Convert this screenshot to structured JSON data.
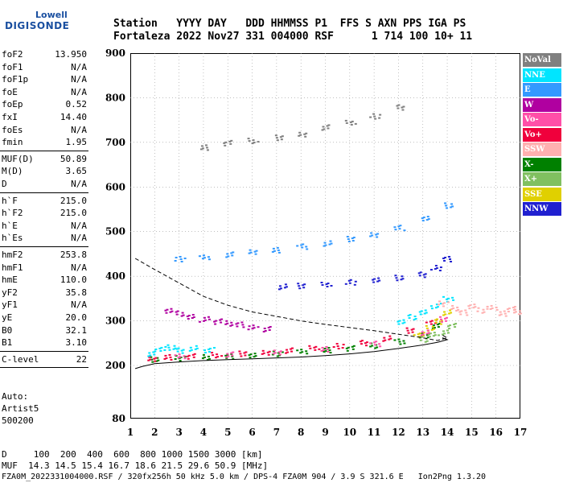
{
  "logo": {
    "line1": "Lowell",
    "line2": "DIGISONDE"
  },
  "header": {
    "line1": "Station   YYYY DAY   DDD HHMMSS P1  FFS S AXN PPS IGA PS",
    "line2": "Fortaleza 2022 Nov27 331 004000 RSF      1 714 100 10+ 11"
  },
  "params": {
    "group1": [
      {
        "label": "foF2",
        "value": "13.950"
      },
      {
        "label": "foF1",
        "value": "N/A"
      },
      {
        "label": "foF1p",
        "value": "N/A"
      },
      {
        "label": "foE",
        "value": "N/A"
      },
      {
        "label": "foEp",
        "value": "0.52"
      },
      {
        "label": "fxI",
        "value": "14.40"
      },
      {
        "label": "foEs",
        "value": "N/A"
      },
      {
        "label": "fmin",
        "value": "1.95"
      }
    ],
    "group2": [
      {
        "label": "MUF(D)",
        "value": "50.89"
      },
      {
        "label": "M(D)",
        "value": "3.65"
      },
      {
        "label": "D",
        "value": "N/A"
      }
    ],
    "group3": [
      {
        "label": "h`F",
        "value": "215.0"
      },
      {
        "label": "h`F2",
        "value": "215.0"
      },
      {
        "label": "h`E",
        "value": "N/A"
      },
      {
        "label": "h`Es",
        "value": "N/A"
      }
    ],
    "group4": [
      {
        "label": "hmF2",
        "value": "253.8"
      },
      {
        "label": "hmF1",
        "value": "N/A"
      },
      {
        "label": "hmE",
        "value": "110.0"
      },
      {
        "label": "yF2",
        "value": "35.8"
      },
      {
        "label": "yF1",
        "value": "N/A"
      },
      {
        "label": "yE",
        "value": "20.0"
      },
      {
        "label": "B0",
        "value": "32.1"
      },
      {
        "label": "B1",
        "value": "3.10"
      }
    ],
    "group5": [
      {
        "label": "C-level",
        "value": "22"
      }
    ]
  },
  "auto": {
    "line1": "Auto:",
    "line2": "Artist5",
    "line3": "500200"
  },
  "footer": {
    "distance_row": "D     100  200  400  600  800 1000 1500 3000 [km]",
    "muf_row": "MUF  14.3 14.5 15.4 16.7 18.6 21.5 29.6 50.9 [MHz]",
    "file_info": "FZA0M_2022331004000.RSF / 320fx256h 50 kHz 5.0 km / DPS-4 FZA0M 904 / 3.9 S 321.6 E   Ion2Png 1.3.20"
  },
  "legend": [
    {
      "label": "NoVal",
      "color": "#808080",
      "text_color": "#ffffff"
    },
    {
      "label": "NNE",
      "color": "#00e5ff",
      "text_color": "#ffffff"
    },
    {
      "label": "E",
      "color": "#3399ff",
      "text_color": "#ffffff"
    },
    {
      "label": "W",
      "color": "#b000a0",
      "text_color": "#ffffff"
    },
    {
      "label": "Vo-",
      "color": "#ff4fa8",
      "text_color": "#ffffff"
    },
    {
      "label": "Vo+",
      "color": "#f0003c",
      "text_color": "#ffffff"
    },
    {
      "label": "SSW",
      "color": "#ffb0b0",
      "text_color": "#ffffff"
    },
    {
      "label": "X-",
      "color": "#008000",
      "text_color": "#ffffff"
    },
    {
      "label": "X+",
      "color": "#80c060",
      "text_color": "#ffffff"
    },
    {
      "label": "SSE",
      "color": "#e0d000",
      "text_color": "#ffffff"
    },
    {
      "label": "NNW",
      "color": "#2020d0",
      "text_color": "#ffffff"
    }
  ],
  "chart_data": {
    "type": "scatter",
    "xlim": [
      1,
      17
    ],
    "ylim": [
      80,
      900
    ],
    "x_ticks": [
      1,
      2,
      3,
      4,
      5,
      6,
      7,
      8,
      9,
      10,
      11,
      12,
      13,
      14,
      15,
      16,
      17
    ],
    "y_ticks": [
      80,
      200,
      300,
      400,
      500,
      600,
      700,
      800,
      900
    ],
    "grid": true,
    "legend_position": "right",
    "series": [
      {
        "name": "X-",
        "color": "#008000",
        "x": [
          2.0,
          3.0,
          4.0,
          5.0,
          6.0,
          7.0,
          8.0,
          9.0,
          10.0,
          11.0,
          12.0,
          13.0,
          13.5
        ],
        "y": [
          215,
          218,
          220,
          222,
          225,
          228,
          232,
          236,
          240,
          246,
          255,
          270,
          290
        ]
      },
      {
        "name": "Vo+",
        "color": "#f0003c",
        "x": [
          1.8,
          2.5,
          3.5,
          4.5,
          5.5,
          6.5,
          7.5,
          8.5,
          9.5,
          10.5,
          11.5,
          12.5,
          13.3
        ],
        "y": [
          215,
          220,
          222,
          225,
          228,
          231,
          235,
          240,
          245,
          252,
          262,
          280,
          300
        ]
      },
      {
        "name": "NNE",
        "color": "#00e5ff",
        "x": [
          1.9,
          2.2,
          2.6,
          3.0,
          3.6,
          4.2,
          12.0,
          12.5,
          13.0,
          13.5,
          14.0
        ],
        "y": [
          228,
          238,
          242,
          235,
          240,
          236,
          300,
          310,
          320,
          335,
          350
        ]
      },
      {
        "name": "W",
        "color": "#b000a0",
        "x": [
          2.5,
          3.0,
          3.5,
          4.0,
          4.5,
          5.0,
          5.5,
          6.0,
          6.5
        ],
        "y": [
          325,
          318,
          310,
          305,
          300,
          296,
          293,
          288,
          283
        ]
      },
      {
        "name": "E",
        "color": "#3399ff",
        "x": [
          3.0,
          4.0,
          5.0,
          6.0,
          7.0,
          8.0,
          9.0,
          10.0,
          11.0,
          12.0,
          13.0,
          14.0
        ],
        "y": [
          440,
          445,
          450,
          455,
          460,
          468,
          475,
          485,
          495,
          510,
          530,
          560
        ]
      },
      {
        "name": "NNW",
        "color": "#2020d0",
        "x": [
          7.2,
          8.0,
          9.0,
          10.0,
          11.0,
          12.0,
          13.0,
          13.5,
          13.9
        ],
        "y": [
          378,
          380,
          384,
          388,
          392,
          398,
          405,
          420,
          440
        ]
      },
      {
        "name": "SSW",
        "color": "#ffb0b0",
        "x": [
          13.8,
          14.2,
          14.6,
          15.0,
          15.4,
          15.8,
          16.2,
          16.6,
          16.9
        ],
        "y": [
          340,
          330,
          320,
          335,
          325,
          330,
          318,
          328,
          322
        ]
      },
      {
        "name": "NoVal",
        "color": "#808080",
        "x": [
          4.0,
          5.0,
          6.0,
          7.0,
          8.0,
          9.0,
          10.0,
          11.0,
          12.0
        ],
        "y": [
          690,
          700,
          705,
          712,
          720,
          735,
          745,
          760,
          780
        ]
      },
      {
        "name": "SSE",
        "color": "#e0d000",
        "x": [
          12.8,
          13.2,
          13.6,
          14.0
        ],
        "y": [
          270,
          285,
          300,
          320
        ]
      },
      {
        "name": "X+",
        "color": "#80c060",
        "x": [
          13.0,
          13.4,
          13.8,
          14.1
        ],
        "y": [
          260,
          270,
          275,
          290
        ]
      },
      {
        "name": "Vo-",
        "color": "#ff4fa8",
        "x": [
          3.0,
          5.0,
          7.0,
          9.0,
          11.0,
          13.0,
          13.8
        ],
        "y": [
          223,
          226,
          230,
          238,
          250,
          275,
          305
        ]
      }
    ],
    "curves": [
      {
        "style": "solid",
        "x": [
          1.2,
          1.5,
          2.0,
          3.0,
          4.0,
          5.0,
          6.0,
          7.0,
          8.0,
          9.0,
          10.0,
          11.0,
          12.0,
          13.0,
          13.6,
          14.0,
          13.8
        ],
        "y": [
          193,
          198,
          204,
          208,
          211,
          213,
          215,
          217,
          219,
          222,
          226,
          231,
          238,
          246,
          252,
          258,
          262
        ]
      },
      {
        "style": "dashed",
        "x": [
          1.2,
          2.0,
          3.0,
          4.0,
          5.0,
          6.0,
          7.0,
          8.0,
          9.0,
          10.0,
          11.0,
          12.0,
          13.0,
          13.6,
          14.0,
          13.8
        ],
        "y": [
          440,
          415,
          385,
          355,
          335,
          320,
          310,
          300,
          292,
          285,
          278,
          270,
          262,
          256,
          262,
          268
        ]
      }
    ]
  }
}
